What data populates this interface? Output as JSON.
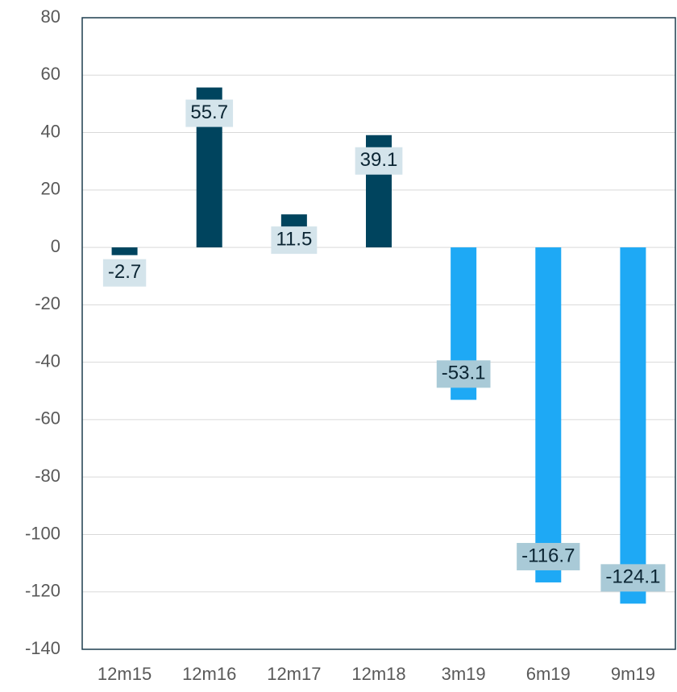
{
  "chart_data": {
    "type": "bar",
    "categories": [
      "12m15",
      "12m16",
      "12m17",
      "12m18",
      "3m19",
      "6m19",
      "9m19"
    ],
    "values": [
      -2.7,
      55.7,
      11.5,
      39.1,
      -53.1,
      -116.7,
      -124.1
    ],
    "colors": [
      "#00445e",
      "#00445e",
      "#00445e",
      "#00445e",
      "#1ea9f5",
      "#1ea9f5",
      "#1ea9f5"
    ],
    "label_colors": [
      "#d4e4eb",
      "#d4e4eb",
      "#d4e4eb",
      "#d4e4eb",
      "#a9cad7",
      "#a9cad7",
      "#a9cad7"
    ],
    "ylim": [
      -140,
      80
    ],
    "yticks": [
      -140,
      -120,
      -100,
      -80,
      -60,
      -40,
      -20,
      0,
      20,
      40,
      60,
      80
    ],
    "grid": true
  }
}
